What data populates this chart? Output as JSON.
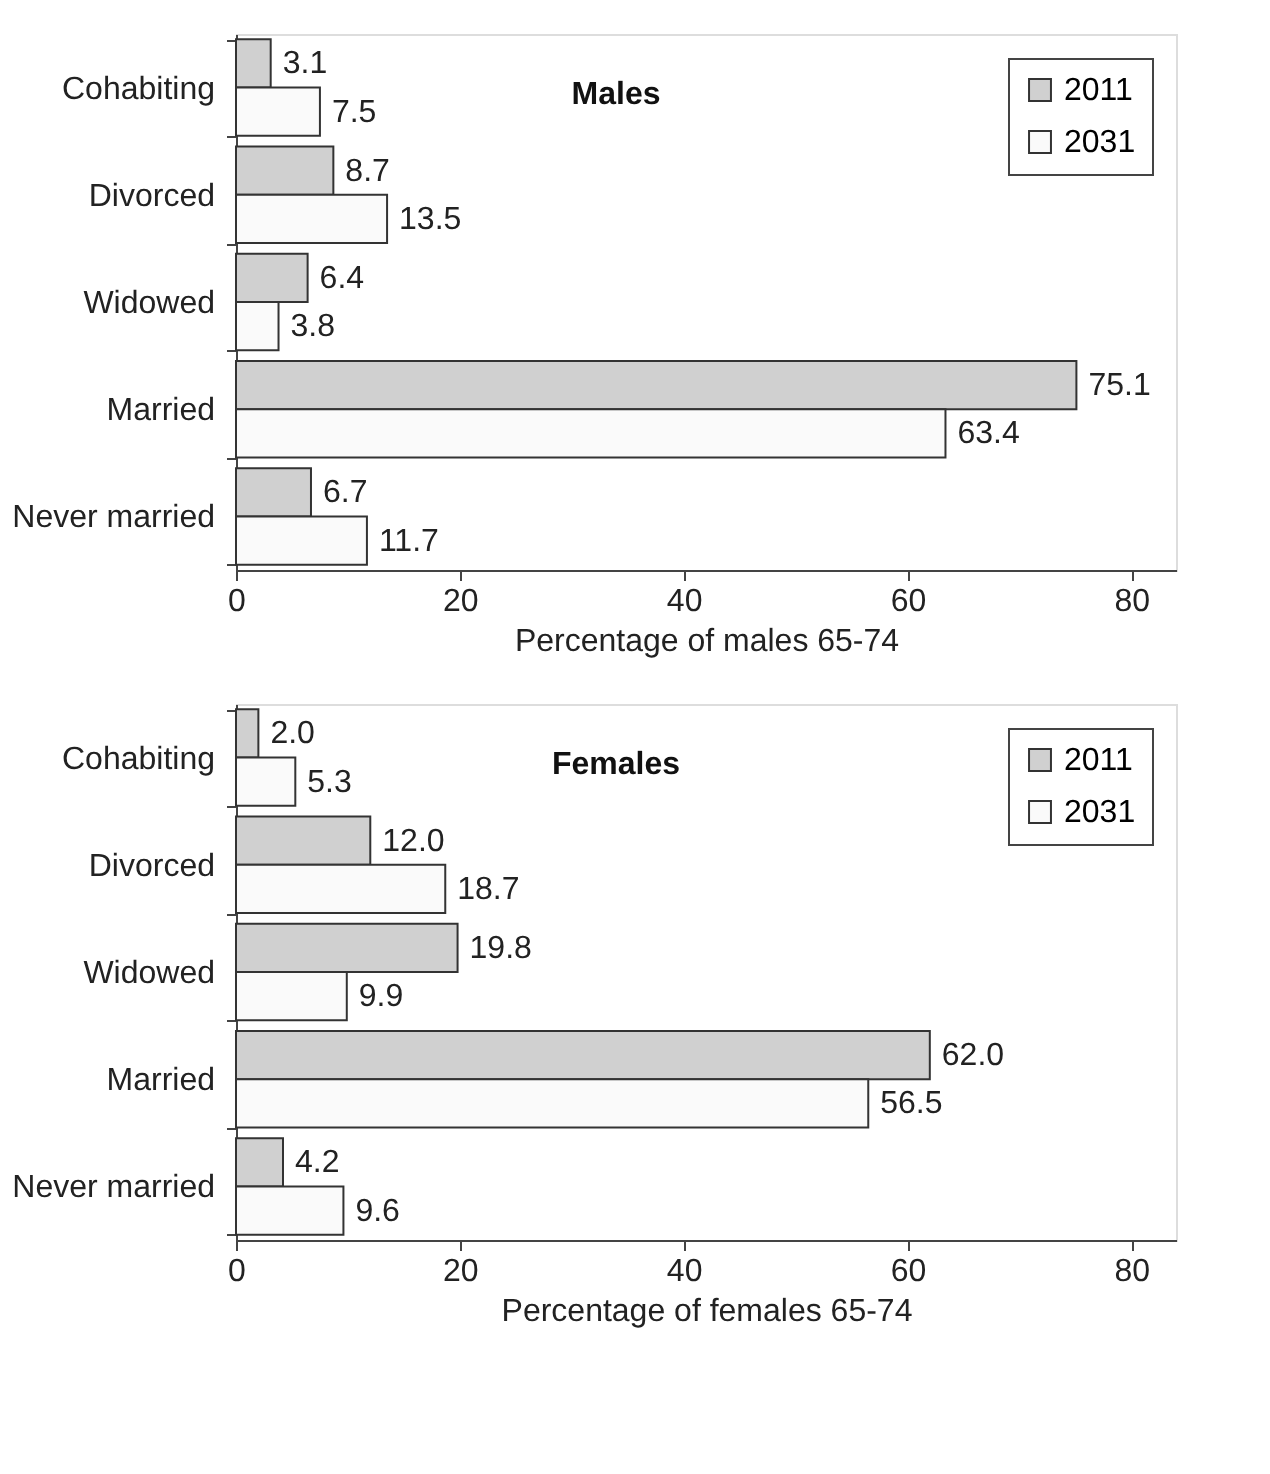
{
  "chart_data": [
    {
      "type": "bar",
      "orientation": "horizontal",
      "categories": [
        "Cohabiting",
        "Divorced",
        "Widowed",
        "Married",
        "Never married"
      ],
      "annotations": [
        "Males"
      ],
      "xlabel": "Percentage of males 65-74",
      "xlim": [
        0,
        84
      ],
      "xticks": [
        0,
        20,
        40,
        60,
        80
      ],
      "legend": "top right",
      "grid": false,
      "series": [
        {
          "name": "2011",
          "color": "#d0d0d0",
          "values": [
            3.1,
            8.7,
            6.4,
            75.1,
            6.7
          ],
          "value_labels": [
            "3.1",
            "8.7",
            "6.4",
            "75.1",
            "6.7"
          ]
        },
        {
          "name": "2031",
          "color": "#fafafa",
          "values": [
            7.5,
            13.5,
            3.8,
            63.4,
            11.7
          ],
          "value_labels": [
            "7.5",
            "13.5",
            "3.8",
            "63.4",
            "11.7"
          ]
        }
      ]
    },
    {
      "type": "bar",
      "orientation": "horizontal",
      "categories": [
        "Cohabiting",
        "Divorced",
        "Widowed",
        "Married",
        "Never married"
      ],
      "annotations": [
        "Females"
      ],
      "xlabel": "Percentage of females 65-74",
      "xlim": [
        0,
        84
      ],
      "xticks": [
        0,
        20,
        40,
        60,
        80
      ],
      "legend": "top right",
      "grid": false,
      "series": [
        {
          "name": "2011",
          "color": "#d0d0d0",
          "values": [
            2.0,
            12.0,
            19.8,
            62.0,
            4.2
          ],
          "value_labels": [
            "2.0",
            "12.0",
            "19.8",
            "62.0",
            "4.2"
          ]
        },
        {
          "name": "2031",
          "color": "#fafafa",
          "values": [
            5.3,
            18.7,
            9.9,
            56.5,
            9.6
          ],
          "value_labels": [
            "5.3",
            "18.7",
            "9.9",
            "56.5",
            "9.6"
          ]
        }
      ]
    }
  ]
}
